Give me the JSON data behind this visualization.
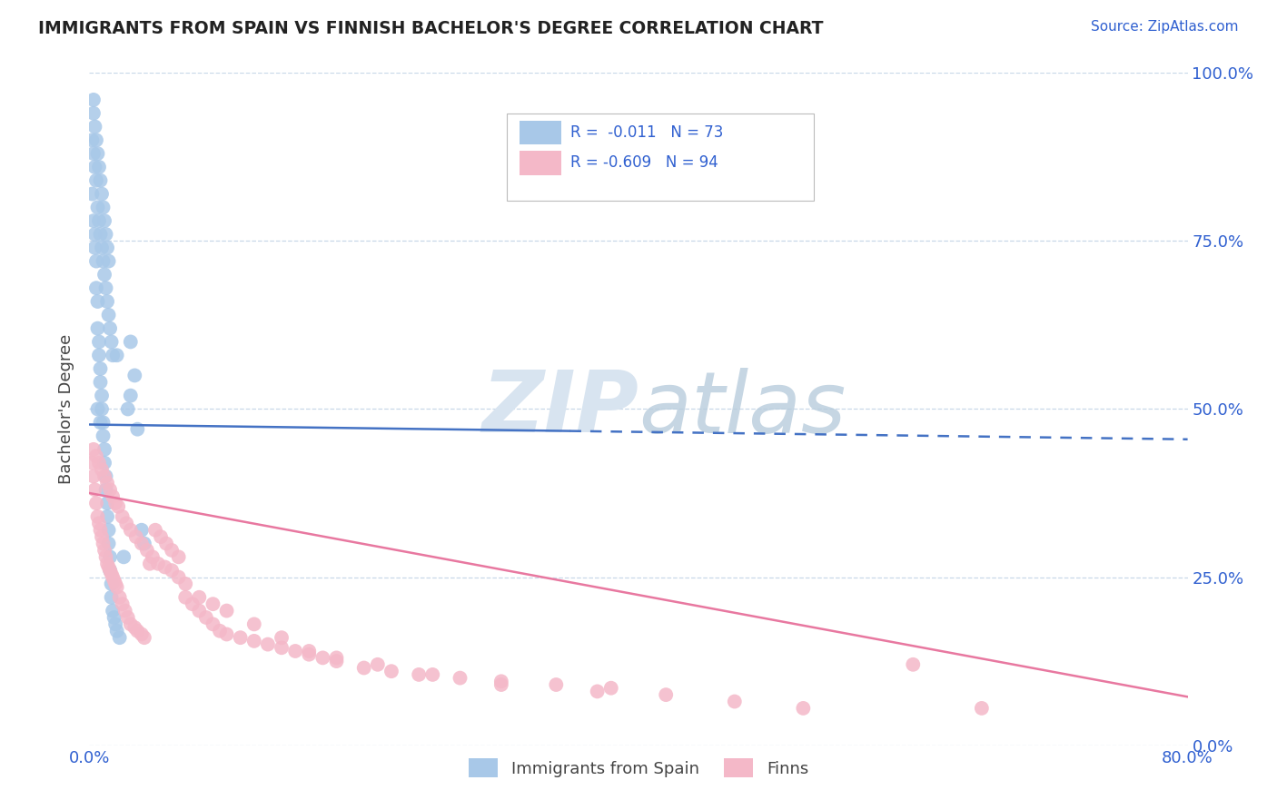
{
  "title": "IMMIGRANTS FROM SPAIN VS FINNISH BACHELOR'S DEGREE CORRELATION CHART",
  "source_text": "Source: ZipAtlas.com",
  "ylabel": "Bachelor's Degree",
  "xlim": [
    0.0,
    0.8
  ],
  "ylim": [
    0.0,
    1.0
  ],
  "blue_color": "#a8c8e8",
  "pink_color": "#f4b8c8",
  "blue_line_color": "#4472c4",
  "pink_line_color": "#e878a0",
  "title_color": "#222222",
  "axis_label_color": "#444444",
  "legend_text_color": "#3060d0",
  "grid_color": "#c8d8e8",
  "watermark_color": "#d8e4f0",
  "background_color": "#ffffff",
  "blue_scatter_x": [
    0.002,
    0.003,
    0.004,
    0.004,
    0.005,
    0.005,
    0.006,
    0.006,
    0.007,
    0.007,
    0.008,
    0.008,
    0.009,
    0.009,
    0.01,
    0.01,
    0.011,
    0.011,
    0.012,
    0.012,
    0.013,
    0.013,
    0.014,
    0.014,
    0.015,
    0.015,
    0.016,
    0.016,
    0.017,
    0.018,
    0.019,
    0.02,
    0.022,
    0.025,
    0.028,
    0.03,
    0.033,
    0.035,
    0.038,
    0.04,
    0.002,
    0.003,
    0.004,
    0.005,
    0.006,
    0.007,
    0.008,
    0.009,
    0.01,
    0.011,
    0.012,
    0.013,
    0.014,
    0.015,
    0.016,
    0.017,
    0.003,
    0.004,
    0.005,
    0.006,
    0.007,
    0.008,
    0.009,
    0.01,
    0.011,
    0.012,
    0.013,
    0.014,
    0.003,
    0.006,
    0.008,
    0.02,
    0.03
  ],
  "blue_scatter_y": [
    0.82,
    0.78,
    0.76,
    0.74,
    0.72,
    0.68,
    0.66,
    0.62,
    0.6,
    0.58,
    0.56,
    0.54,
    0.52,
    0.5,
    0.48,
    0.46,
    0.44,
    0.42,
    0.4,
    0.38,
    0.36,
    0.34,
    0.32,
    0.3,
    0.28,
    0.26,
    0.24,
    0.22,
    0.2,
    0.19,
    0.18,
    0.17,
    0.16,
    0.28,
    0.5,
    0.52,
    0.55,
    0.47,
    0.32,
    0.3,
    0.9,
    0.88,
    0.86,
    0.84,
    0.8,
    0.78,
    0.76,
    0.74,
    0.72,
    0.7,
    0.68,
    0.66,
    0.64,
    0.62,
    0.6,
    0.58,
    0.94,
    0.92,
    0.9,
    0.88,
    0.86,
    0.84,
    0.82,
    0.8,
    0.78,
    0.76,
    0.74,
    0.72,
    0.96,
    0.5,
    0.48,
    0.58,
    0.6
  ],
  "pink_scatter_x": [
    0.002,
    0.003,
    0.004,
    0.005,
    0.006,
    0.007,
    0.008,
    0.009,
    0.01,
    0.011,
    0.012,
    0.013,
    0.014,
    0.015,
    0.016,
    0.017,
    0.018,
    0.019,
    0.02,
    0.022,
    0.024,
    0.026,
    0.028,
    0.03,
    0.033,
    0.035,
    0.038,
    0.04,
    0.044,
    0.048,
    0.052,
    0.056,
    0.06,
    0.065,
    0.07,
    0.075,
    0.08,
    0.085,
    0.09,
    0.095,
    0.1,
    0.11,
    0.12,
    0.13,
    0.14,
    0.15,
    0.16,
    0.17,
    0.18,
    0.2,
    0.22,
    0.24,
    0.27,
    0.3,
    0.34,
    0.38,
    0.42,
    0.47,
    0.52,
    0.6,
    0.003,
    0.005,
    0.007,
    0.009,
    0.011,
    0.013,
    0.015,
    0.017,
    0.019,
    0.021,
    0.024,
    0.027,
    0.03,
    0.034,
    0.038,
    0.042,
    0.046,
    0.05,
    0.055,
    0.06,
    0.065,
    0.07,
    0.08,
    0.09,
    0.1,
    0.12,
    0.14,
    0.16,
    0.18,
    0.21,
    0.25,
    0.3,
    0.37,
    0.65
  ],
  "pink_scatter_y": [
    0.42,
    0.4,
    0.38,
    0.36,
    0.34,
    0.33,
    0.32,
    0.31,
    0.3,
    0.29,
    0.28,
    0.27,
    0.265,
    0.26,
    0.255,
    0.25,
    0.245,
    0.24,
    0.235,
    0.22,
    0.21,
    0.2,
    0.19,
    0.18,
    0.175,
    0.17,
    0.165,
    0.16,
    0.27,
    0.32,
    0.31,
    0.3,
    0.29,
    0.28,
    0.22,
    0.21,
    0.2,
    0.19,
    0.18,
    0.17,
    0.165,
    0.16,
    0.155,
    0.15,
    0.145,
    0.14,
    0.135,
    0.13,
    0.125,
    0.115,
    0.11,
    0.105,
    0.1,
    0.095,
    0.09,
    0.085,
    0.075,
    0.065,
    0.055,
    0.12,
    0.44,
    0.43,
    0.42,
    0.41,
    0.4,
    0.39,
    0.38,
    0.37,
    0.36,
    0.355,
    0.34,
    0.33,
    0.32,
    0.31,
    0.3,
    0.29,
    0.28,
    0.27,
    0.265,
    0.26,
    0.25,
    0.24,
    0.22,
    0.21,
    0.2,
    0.18,
    0.16,
    0.14,
    0.13,
    0.12,
    0.105,
    0.09,
    0.08,
    0.055
  ]
}
